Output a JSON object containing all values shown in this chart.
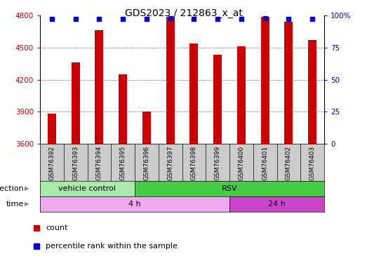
{
  "title": "GDS2023 / 212863_x_at",
  "samples": [
    "GSM76392",
    "GSM76393",
    "GSM76394",
    "GSM76395",
    "GSM76396",
    "GSM76397",
    "GSM76398",
    "GSM76399",
    "GSM76400",
    "GSM76401",
    "GSM76402",
    "GSM76403"
  ],
  "counts": [
    3880,
    4360,
    4660,
    4250,
    3900,
    4790,
    4540,
    4430,
    4510,
    4790,
    4740,
    4570
  ],
  "percentile_ranks": [
    97,
    97,
    97,
    97,
    97,
    98,
    97,
    97,
    97,
    98,
    97,
    97
  ],
  "ylim_left": [
    3600,
    4800
  ],
  "ylim_right": [
    0,
    100
  ],
  "right_ticks": [
    0,
    25,
    50,
    75,
    100
  ],
  "right_tick_labels": [
    "0",
    "25",
    "50",
    "75",
    "100%"
  ],
  "left_ticks": [
    3600,
    3900,
    4200,
    4500,
    4800
  ],
  "grid_values": [
    3900,
    4200,
    4500
  ],
  "bar_color": "#cc0000",
  "dot_color": "#0000cc",
  "bar_width": 0.35,
  "infection_groups": [
    {
      "label": "vehicle control",
      "start": 0,
      "end": 4,
      "color": "#aaeaaa"
    },
    {
      "label": "RSV",
      "start": 4,
      "end": 12,
      "color": "#44cc44"
    }
  ],
  "time_groups": [
    {
      "label": "4 h",
      "start": 0,
      "end": 8,
      "color": "#eeaaee"
    },
    {
      "label": "24 h",
      "start": 8,
      "end": 12,
      "color": "#cc44cc"
    }
  ],
  "ylabel_left_color": "#cc0000",
  "ylabel_right_color": "#0000cc",
  "title_fontsize": 10,
  "tick_label_fontsize": 7.5,
  "sample_label_fontsize": 6.5,
  "row_label_fontsize": 8,
  "legend_fontsize": 8,
  "background_color": "#ffffff",
  "plot_bg_color": "#ffffff",
  "xtick_bg_color": "#cccccc",
  "arrow_color": "#888888"
}
